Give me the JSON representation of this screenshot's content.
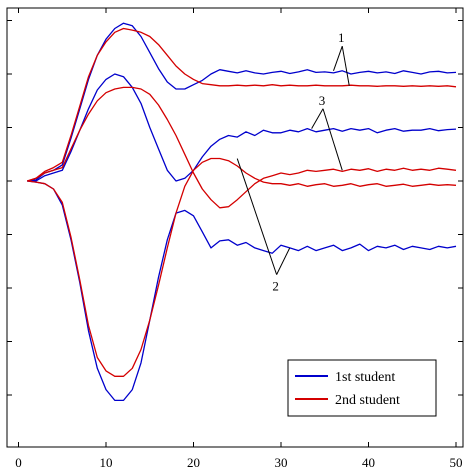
{
  "chart_data": {
    "type": "line",
    "title": "",
    "xlabel": "",
    "ylabel": "",
    "xlim": [
      0,
      50
    ],
    "ylim": [
      -5,
      3
    ],
    "x_ticks": [
      0,
      10,
      20,
      30,
      40,
      50
    ],
    "x_tick_labels": [
      "0",
      "10",
      "20",
      "30",
      "40",
      "50"
    ],
    "y_ticks": [
      -5,
      -4,
      -3,
      -2,
      -1,
      0,
      1,
      2,
      3
    ],
    "y_tick_labels": [
      "",
      "",
      "",
      "",
      "",
      "",
      "",
      "",
      ""
    ],
    "grid": false,
    "legend": {
      "position": "bottom-right",
      "entries": [
        {
          "label": "1st student",
          "color": "#0000cc"
        },
        {
          "label": "2nd student",
          "color": "#d40000"
        }
      ]
    },
    "series": [
      {
        "color": "#0000cc",
        "x": [
          1,
          2,
          3,
          4,
          5,
          6,
          7,
          8,
          9,
          10,
          11,
          12,
          13,
          14,
          15,
          16,
          17,
          18,
          19,
          20,
          21,
          22,
          23,
          24,
          25,
          26,
          27,
          28,
          29,
          30,
          31,
          32,
          33,
          34,
          35,
          36,
          37,
          38,
          39,
          40,
          41,
          42,
          43,
          44,
          45,
          46,
          47,
          48,
          49,
          50
        ],
        "y": [
          0.0,
          0.02,
          0.15,
          0.2,
          0.3,
          0.8,
          1.35,
          1.9,
          2.35,
          2.65,
          2.85,
          2.95,
          2.9,
          2.7,
          2.4,
          2.1,
          1.85,
          1.72,
          1.72,
          1.8,
          1.88,
          2.0,
          2.08,
          2.05,
          2.02,
          2.06,
          2.02,
          2.0,
          2.03,
          2.05,
          2.01,
          2.04,
          2.08,
          2.03,
          2.04,
          2.02,
          2.06,
          2.0,
          2.03,
          2.05,
          2.02,
          2.04,
          2.01,
          2.06,
          2.03,
          2.0,
          2.04,
          2.05,
          2.02,
          2.03
        ]
      },
      {
        "color": "#0000cc",
        "x": [
          1,
          2,
          3,
          4,
          5,
          6,
          7,
          8,
          9,
          10,
          11,
          12,
          13,
          14,
          15,
          16,
          17,
          18,
          19,
          20,
          21,
          22,
          23,
          24,
          25,
          26,
          27,
          28,
          29,
          30,
          31,
          32,
          33,
          34,
          35,
          36,
          37,
          38,
          39,
          40,
          41,
          42,
          43,
          44,
          45,
          46,
          47,
          48,
          49,
          50
        ],
        "y": [
          0.0,
          0.0,
          0.1,
          0.15,
          0.2,
          0.55,
          0.95,
          1.35,
          1.7,
          1.9,
          2.0,
          1.95,
          1.75,
          1.45,
          1.0,
          0.6,
          0.2,
          0.0,
          0.05,
          0.2,
          0.45,
          0.65,
          0.78,
          0.85,
          0.82,
          0.92,
          0.85,
          0.95,
          0.9,
          0.9,
          0.95,
          0.92,
          0.98,
          0.92,
          0.95,
          0.98,
          0.93,
          0.98,
          0.95,
          0.98,
          0.9,
          0.95,
          0.98,
          0.93,
          0.95,
          0.95,
          0.98,
          0.94,
          0.96,
          0.97
        ]
      },
      {
        "color": "#0000cc",
        "x": [
          1,
          2,
          3,
          4,
          5,
          6,
          7,
          8,
          9,
          10,
          11,
          12,
          13,
          14,
          15,
          16,
          17,
          18,
          19,
          20,
          21,
          22,
          23,
          24,
          25,
          26,
          27,
          28,
          29,
          30,
          31,
          32,
          33,
          34,
          35,
          36,
          37,
          38,
          39,
          40,
          41,
          42,
          43,
          44,
          45,
          46,
          47,
          48,
          49,
          50
        ],
        "y": [
          0.0,
          -0.02,
          -0.05,
          -0.15,
          -0.45,
          -1.1,
          -1.9,
          -2.8,
          -3.5,
          -3.9,
          -4.1,
          -4.1,
          -3.9,
          -3.4,
          -2.6,
          -1.8,
          -1.1,
          -0.6,
          -0.55,
          -0.65,
          -0.95,
          -1.25,
          -1.12,
          -1.1,
          -1.2,
          -1.15,
          -1.25,
          -1.3,
          -1.35,
          -1.2,
          -1.25,
          -1.3,
          -1.22,
          -1.3,
          -1.25,
          -1.2,
          -1.3,
          -1.25,
          -1.18,
          -1.3,
          -1.22,
          -1.25,
          -1.2,
          -1.28,
          -1.22,
          -1.25,
          -1.28,
          -1.22,
          -1.25,
          -1.22
        ]
      },
      {
        "color": "#d40000",
        "x": [
          1,
          2,
          3,
          4,
          5,
          6,
          7,
          8,
          9,
          10,
          11,
          12,
          13,
          14,
          15,
          16,
          17,
          18,
          19,
          20,
          21,
          22,
          23,
          24,
          25,
          26,
          27,
          28,
          29,
          30,
          31,
          32,
          33,
          34,
          35,
          36,
          37,
          38,
          39,
          40,
          41,
          42,
          43,
          44,
          45,
          46,
          47,
          48,
          49,
          50
        ],
        "y": [
          0.0,
          0.05,
          0.18,
          0.25,
          0.35,
          0.85,
          1.4,
          1.95,
          2.35,
          2.6,
          2.78,
          2.85,
          2.82,
          2.78,
          2.7,
          2.55,
          2.35,
          2.15,
          2.0,
          1.9,
          1.82,
          1.8,
          1.78,
          1.78,
          1.79,
          1.78,
          1.79,
          1.78,
          1.8,
          1.78,
          1.79,
          1.78,
          1.78,
          1.79,
          1.78,
          1.78,
          1.78,
          1.79,
          1.78,
          1.78,
          1.77,
          1.78,
          1.78,
          1.77,
          1.78,
          1.77,
          1.78,
          1.77,
          1.78,
          1.76
        ]
      },
      {
        "color": "#d40000",
        "x": [
          1,
          2,
          3,
          4,
          5,
          6,
          7,
          8,
          9,
          10,
          11,
          12,
          13,
          14,
          15,
          16,
          17,
          18,
          19,
          20,
          21,
          22,
          23,
          24,
          25,
          26,
          27,
          28,
          29,
          30,
          31,
          32,
          33,
          34,
          35,
          36,
          37,
          38,
          39,
          40,
          41,
          42,
          43,
          44,
          45,
          46,
          47,
          48,
          49,
          50
        ],
        "y": [
          0.0,
          0.05,
          0.15,
          0.2,
          0.25,
          0.6,
          0.95,
          1.25,
          1.5,
          1.65,
          1.72,
          1.75,
          1.75,
          1.72,
          1.62,
          1.42,
          1.15,
          0.85,
          0.5,
          0.15,
          -0.15,
          -0.35,
          -0.5,
          -0.48,
          -0.35,
          -0.2,
          -0.05,
          0.05,
          0.1,
          0.15,
          0.12,
          0.15,
          0.2,
          0.18,
          0.2,
          0.22,
          0.18,
          0.22,
          0.2,
          0.23,
          0.18,
          0.22,
          0.2,
          0.24,
          0.2,
          0.22,
          0.2,
          0.24,
          0.22,
          0.2
        ]
      },
      {
        "color": "#d40000",
        "x": [
          1,
          2,
          3,
          4,
          5,
          6,
          7,
          8,
          9,
          10,
          11,
          12,
          13,
          14,
          15,
          16,
          17,
          18,
          19,
          20,
          21,
          22,
          23,
          24,
          25,
          26,
          27,
          28,
          29,
          30,
          31,
          32,
          33,
          34,
          35,
          36,
          37,
          38,
          39,
          40,
          41,
          42,
          43,
          44,
          45,
          46,
          47,
          48,
          49,
          50
        ],
        "y": [
          0.0,
          -0.02,
          -0.05,
          -0.15,
          -0.4,
          -1.05,
          -1.85,
          -2.7,
          -3.3,
          -3.55,
          -3.65,
          -3.65,
          -3.5,
          -3.15,
          -2.6,
          -1.95,
          -1.25,
          -0.6,
          -0.1,
          0.2,
          0.35,
          0.42,
          0.42,
          0.38,
          0.28,
          0.15,
          0.05,
          -0.02,
          -0.05,
          -0.05,
          -0.08,
          -0.05,
          -0.1,
          -0.07,
          -0.05,
          -0.1,
          -0.08,
          -0.05,
          -0.1,
          -0.07,
          -0.05,
          -0.1,
          -0.08,
          -0.06,
          -0.1,
          -0.08,
          -0.06,
          -0.08,
          -0.07,
          -0.08
        ]
      }
    ],
    "annotations": [
      {
        "label": "1",
        "anchor": [
          37.0,
          2.52
        ],
        "targets": [
          [
            36.0,
            2.06
          ],
          [
            37.8,
            1.78
          ]
        ]
      },
      {
        "label": "3",
        "anchor": [
          34.8,
          1.35
        ],
        "targets": [
          [
            33.5,
            0.98
          ],
          [
            37.0,
            0.2
          ]
        ]
      },
      {
        "label": "2",
        "anchor": [
          29.5,
          -1.75
        ],
        "targets": [
          [
            25.0,
            0.42
          ],
          [
            31.0,
            -1.25
          ]
        ]
      }
    ]
  }
}
